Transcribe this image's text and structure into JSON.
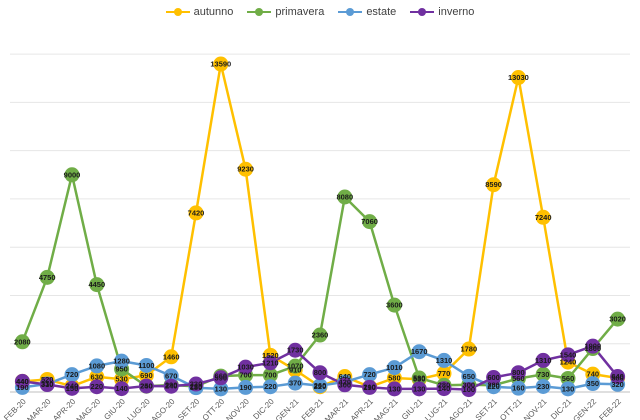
{
  "chart_data": {
    "type": "line",
    "title": "",
    "xlabel": "",
    "ylabel": "",
    "ylim": [
      0,
      15000
    ],
    "grid": "horizontal",
    "legend_position": "top-center",
    "categories": [
      "FEB-20",
      "MAR-20",
      "APR-20",
      "MAG-20",
      "GIU-20",
      "LUG-20",
      "AGO-20",
      "SET-20",
      "OTT-20",
      "NOV-20",
      "DIC-20",
      "GEN-21",
      "FEB-21",
      "MAR-21",
      "APR-21",
      "MAG-21",
      "GIU-21",
      "LUG-21",
      "AGO-21",
      "SET-21",
      "OTT-21",
      "NOV-21",
      "DIC-21",
      "GEN-22",
      "FEB-22"
    ],
    "series": [
      {
        "name": "autunno",
        "color": "#FFC000",
        "values": [
          440,
          520,
          240,
          630,
          530,
          690,
          1460,
          7420,
          13590,
          9230,
          1520,
          910,
          220,
          640,
          210,
          580,
          530,
          770,
          1780,
          8590,
          13030,
          7240,
          1240,
          740,
          580
        ]
      },
      {
        "name": "primavera",
        "color": "#70AD47",
        "values": [
          2080,
          4750,
          9000,
          4450,
          950,
          240,
          290,
          230,
          660,
          700,
          700,
          1070,
          2360,
          8080,
          7060,
          3600,
          580,
          280,
          300,
          280,
          560,
          730,
          560,
          1800,
          3020
        ]
      },
      {
        "name": "estate",
        "color": "#5B9BD5",
        "values": [
          190,
          330,
          720,
          1080,
          1280,
          1100,
          670,
          180,
          130,
          190,
          220,
          370,
          260,
          420,
          720,
          1010,
          1670,
          1310,
          650,
          220,
          160,
          230,
          130,
          350,
          320
        ]
      },
      {
        "name": "inverno",
        "color": "#7030A0",
        "values": [
          440,
          310,
          150,
          220,
          140,
          250,
          240,
          330,
          590,
          1030,
          1210,
          1730,
          800,
          300,
          190,
          130,
          130,
          140,
          100,
          600,
          800,
          1310,
          1540,
          1900,
          640
        ]
      }
    ],
    "data_labels": true
  }
}
